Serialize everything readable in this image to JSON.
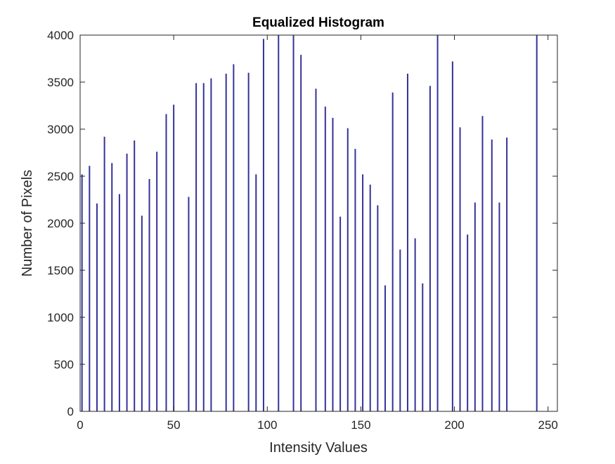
{
  "chart_data": {
    "type": "bar",
    "title": "Equalized Histogram",
    "xlabel": "Intensity Values",
    "ylabel": "Number of Pixels",
    "xlim": [
      0,
      255
    ],
    "ylim": [
      0,
      4000
    ],
    "xticks": [
      "0",
      "50",
      "100",
      "150",
      "200",
      "250"
    ],
    "yticks": [
      "0",
      "500",
      "1000",
      "1500",
      "2000",
      "2500",
      "3000",
      "3500",
      "4000"
    ],
    "grid": false,
    "bar_color": "#333399",
    "x": [
      1,
      5,
      9,
      13,
      17,
      21,
      25,
      29,
      33,
      37,
      41,
      46,
      50,
      58,
      62,
      66,
      70,
      78,
      82,
      90,
      94,
      98,
      106,
      114,
      118,
      126,
      131,
      135,
      139,
      143,
      147,
      151,
      155,
      159,
      163,
      167,
      171,
      175,
      179,
      183,
      187,
      191,
      199,
      203,
      207,
      211,
      215,
      220,
      224,
      228,
      244
    ],
    "values": [
      2520,
      2610,
      2210,
      2920,
      2640,
      2310,
      2740,
      2880,
      2080,
      2470,
      2760,
      3160,
      3260,
      2280,
      3490,
      3490,
      3540,
      3590,
      3690,
      3600,
      2520,
      3960,
      4000,
      4000,
      3790,
      3430,
      3240,
      3120,
      2070,
      3010,
      2790,
      2520,
      2410,
      2190,
      1340,
      3390,
      1720,
      3590,
      1840,
      1360,
      3460,
      4000,
      3720,
      3020,
      1880,
      2220,
      3140,
      2890,
      2220,
      2910,
      4000
    ]
  }
}
